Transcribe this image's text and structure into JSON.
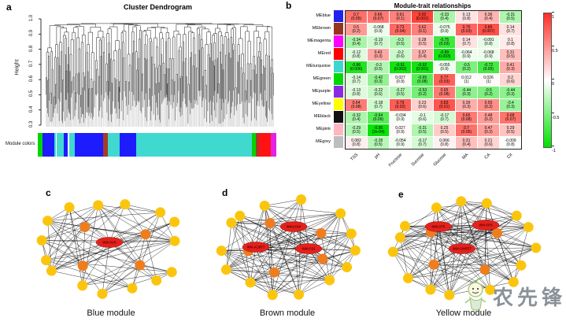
{
  "figure": {
    "panel_letters": {
      "a": "a",
      "b": "b",
      "c": "c",
      "d": "d",
      "e": "e"
    }
  },
  "watermark": {
    "text": "农先锋"
  },
  "chart_data": [
    {
      "type": "dendrogram",
      "title": "Cluster Dendrogram",
      "ylabel": "Height",
      "ylim": [
        0.3,
        1.0
      ],
      "yticks": [
        "1.0",
        "0.9",
        "0.8",
        "0.7",
        "0.6",
        "0.5",
        "0.4",
        "0.3"
      ],
      "band_label": "Module colors",
      "module_color_band": [
        {
          "color": "#00d500",
          "w": 0.02
        },
        {
          "color": "#1c1cff",
          "w": 0.048
        },
        {
          "color": "#40d9d0",
          "w": 0.008
        },
        {
          "color": "#ffffff",
          "w": 0.004
        },
        {
          "color": "#40d9d0",
          "w": 0.03
        },
        {
          "color": "#1c1cff",
          "w": 0.016
        },
        {
          "color": "#ffffff",
          "w": 0.005
        },
        {
          "color": "#40d9d0",
          "w": 0.024
        },
        {
          "color": "#1c1cff",
          "w": 0.118
        },
        {
          "color": "#a33c28",
          "w": 0.022
        },
        {
          "color": "#40d9d0",
          "w": 0.05
        },
        {
          "color": "#1c1cff",
          "w": 0.068
        },
        {
          "color": "#40d9d0",
          "w": 0.485
        },
        {
          "color": "#00d500",
          "w": 0.016
        },
        {
          "color": "#a33c28",
          "w": 0.014
        },
        {
          "color": "#ff1212",
          "w": 0.048
        },
        {
          "color": "#e320e3",
          "w": 0.024
        }
      ]
    },
    {
      "type": "heatmap",
      "title": "Module-trait relationships",
      "x_categories": [
        "TSS",
        "pH",
        "Fructose",
        "Sucrose",
        "Glucose",
        "MA",
        "CA",
        "Cit"
      ],
      "y_categories": [
        "MEblue",
        "MEbrown",
        "MEmagenta",
        "MEred",
        "MEturquoise",
        "MEgreen",
        "MEpurple",
        "MEyellow",
        "MEblack",
        "MEpink",
        "MEgrey"
      ],
      "row_colors": [
        "#2222ee",
        "#97341f",
        "#ff00ff",
        "#ff0000",
        "#3fd6cd",
        "#00d800",
        "#8a2be2",
        "#ffff00",
        "#111111",
        "#ffb6c1",
        "#bebebe"
      ],
      "series": [
        {
          "name": "MEblue",
          "values": [
            0.7,
            0.66,
            0.61,
            0.92,
            -0.33,
            0.13,
            0.36,
            -0.31
          ],
          "p_values": [
            "0.05",
            "0.07",
            "0.1",
            "0.001",
            "0.4",
            "0.8",
            "0.4",
            "0.5"
          ]
        },
        {
          "name": "MEbrown",
          "values": [
            0.5,
            -0.068,
            0.73,
            0.62,
            -0.075,
            0.75,
            0.85,
            0.14
          ],
          "p_values": [
            "0.2",
            "0.9",
            "0.04",
            "0.1",
            "0.9",
            "0.03",
            "0.007",
            "0.7"
          ]
        },
        {
          "name": "MEmagenta",
          "values": [
            -0.34,
            -0.19,
            -0.3,
            0.28,
            -0.75,
            0.14,
            -0.091,
            0.1
          ],
          "p_values": [
            "0.4",
            "0.7",
            "0.5",
            "0.5",
            "0.03",
            "0.7",
            "0.8",
            "0.8"
          ]
        },
        {
          "name": "MEred",
          "values": [
            -0.12,
            0.43,
            -0.2,
            0.37,
            -0.89,
            -0.064,
            -0.068,
            0.31
          ],
          "p_values": [
            "0.8",
            "0.3",
            "0.6",
            "0.4",
            "0.003",
            "0.9",
            "0.9",
            "0.5"
          ]
        },
        {
          "name": "MEturquoise",
          "values": [
            -0.86,
            -0.3,
            -0.91,
            -0.92,
            -0.055,
            -0.5,
            -0.72,
            0.41
          ],
          "p_values": [
            "0.006",
            "0.5",
            "0.002",
            "0.001",
            "0.9",
            "0.2",
            "0.05",
            "0.3"
          ]
        },
        {
          "name": "MEgreen",
          "values": [
            -0.14,
            -0.42,
            0.027,
            -0.65,
            0.77,
            0.012,
            0.026,
            0.2
          ],
          "p_values": [
            "0.7",
            "0.3",
            "0.9",
            "0.08",
            "0.03",
            "1",
            "1",
            "0.6"
          ]
        },
        {
          "name": "MEpurple",
          "values": [
            -0.13,
            -0.22,
            -0.27,
            -0.53,
            0.65,
            -0.44,
            -0.5,
            -0.44
          ],
          "p_values": [
            "0.8",
            "0.6",
            "0.5",
            "0.2",
            "0.08",
            "0.3",
            "0.2",
            "0.3"
          ]
        },
        {
          "name": "MEyellow",
          "values": [
            0.64,
            -0.18,
            0.79,
            0.23,
            0.83,
            0.39,
            0.55,
            -0.4
          ],
          "p_values": [
            "0.08",
            "0.7",
            "0.02",
            "0.6",
            "0.01",
            "0.3",
            "0.2",
            "0.3"
          ]
        },
        {
          "name": "MEblack",
          "values": [
            -0.32,
            -0.64,
            -0.034,
            -0.1,
            -0.17,
            0.65,
            0.48,
            0.68
          ],
          "p_values": [
            "0.4",
            "0.09",
            "0.9",
            "0.6",
            "0.7",
            "0.08",
            "0.2",
            "0.07"
          ]
        },
        {
          "name": "MEpink",
          "values": [
            -0.29,
            -0.95,
            0.027,
            -0.31,
            0.25,
            0.7,
            0.47,
            0.29
          ],
          "p_values": [
            "0.5",
            "2e-04",
            "0.9",
            "0.5",
            "0.5",
            "0.05",
            "0.2",
            "0.5"
          ]
        },
        {
          "name": "MEgrey",
          "values": [
            0.082,
            -0.28,
            -0.054,
            -0.17,
            0.066,
            0.31,
            0.21,
            -0.009
          ],
          "p_values": [
            "0.8",
            "0.5",
            "0.9",
            "0.7",
            "0.8",
            "0.4",
            "0.6",
            "0.8"
          ]
        }
      ],
      "colorbar": {
        "min": -1,
        "max": 1,
        "ticks": [
          "1",
          "0.5",
          "0",
          "-0.5",
          "-1"
        ]
      }
    },
    {
      "type": "network",
      "caption": "Blue module",
      "yellow_nodes": 15,
      "orange_nodes": 4,
      "hubs": [
        {
          "label": "WM-SUS"
        }
      ]
    },
    {
      "type": "network",
      "caption": "Brown module",
      "yellow_nodes": 14,
      "orange_nodes": 5,
      "hubs": [
        {
          "label": "WM-ICDH"
        },
        {
          "label": "WM-ALMT7"
        },
        {
          "label": "WM-CS1"
        }
      ]
    },
    {
      "type": "network",
      "caption": "Yellow module",
      "yellow_nodes": 15,
      "orange_nodes": 4,
      "hubs": [
        {
          "label": "WM-STP"
        },
        {
          "label": "WM-SPS"
        },
        {
          "label": "WM-SWEET"
        }
      ]
    }
  ]
}
